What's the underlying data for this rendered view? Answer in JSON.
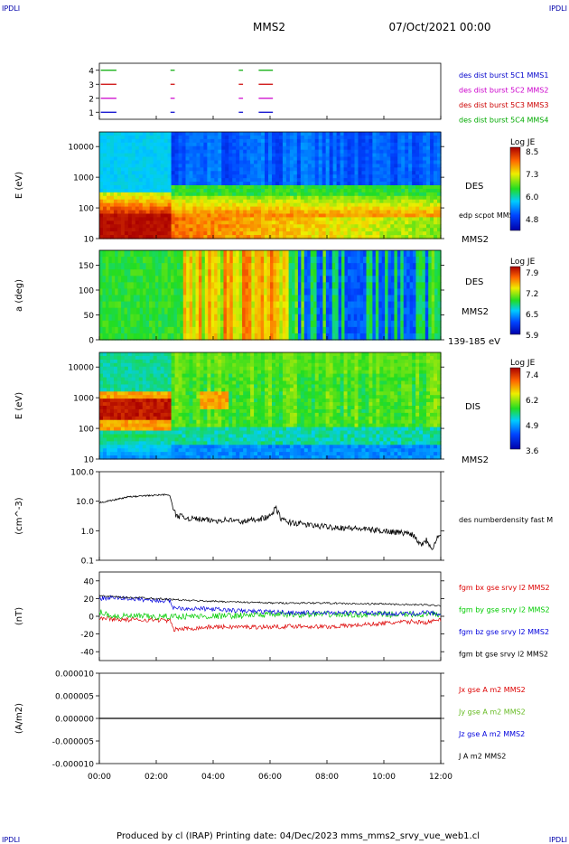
{
  "header": {
    "corner_tl": "IPDLI",
    "corner_tr": "IPDLI",
    "corner_bl": "IPDLI",
    "corner_br": "IPDLI",
    "title": "MMS2",
    "date": "07/Oct/2021 00:00"
  },
  "footer": {
    "text": "Produced by cl (IRAP)   Printing date: 04/Dec/2023   mms_mms2_srvy_vue_web1.cl"
  },
  "x_axis": {
    "ticks": [
      "00:00",
      "02:00",
      "04:00",
      "06:00",
      "08:00",
      "10:00",
      "12:00"
    ],
    "range_hours": [
      0,
      12
    ]
  },
  "colors": {
    "mms1": "#0000cc",
    "mms2": "#cc00cc",
    "mms3": "#cc0000",
    "mms4": "#00aa00",
    "bx": "#dd0000",
    "by": "#00cc00",
    "bz": "#0000dd",
    "bt": "#000000"
  },
  "chart_data": [
    {
      "type": "line",
      "name": "burst",
      "ylim": [
        0.5,
        4.5
      ],
      "yticks": [
        "4",
        "3",
        "2",
        "1"
      ],
      "legend": [
        {
          "text": "des dist burst 5C1 MMS1",
          "color": "#0000cc"
        },
        {
          "text": "des dist burst 5C2 MMS2",
          "color": "#cc00cc"
        },
        {
          "text": "des dist burst 5C3 MMS3",
          "color": "#cc0000"
        },
        {
          "text": "des dist burst 5C4 MMS4",
          "color": "#00aa00"
        }
      ],
      "intervals_hours": [
        [
          0.05,
          0.6
        ],
        [
          2.5,
          2.65
        ],
        [
          4.9,
          5.05
        ],
        [
          5.6,
          6.1
        ]
      ]
    },
    {
      "type": "heatmap",
      "name": "des-energy",
      "ylabel": "E (eV)",
      "yscale": "log",
      "ylim": [
        10,
        30000
      ],
      "yticks": [
        "10000",
        "1000",
        "100",
        "10"
      ],
      "labels": [
        "DES",
        "edp scpot MMS2",
        "MMS2"
      ],
      "colorbar": {
        "title": "Log JE",
        "ticks": [
          "8.5",
          "7.3",
          "6.0",
          "4.8"
        ]
      }
    },
    {
      "type": "heatmap",
      "name": "des-pitch",
      "ylabel": "a (deg)",
      "ylim": [
        0,
        180
      ],
      "yticks": [
        "150",
        "100",
        "50",
        "0"
      ],
      "labels": [
        "DES",
        "MMS2",
        "139-185 eV"
      ],
      "colorbar": {
        "title": "Log JE",
        "ticks": [
          "7.9",
          "7.2",
          "6.5",
          "5.9"
        ]
      }
    },
    {
      "type": "heatmap",
      "name": "dis-energy",
      "ylabel": "E (eV)",
      "yscale": "log",
      "ylim": [
        10,
        30000
      ],
      "yticks": [
        "10000",
        "1000",
        "100",
        "10"
      ],
      "labels": [
        "DIS",
        "MMS2"
      ],
      "colorbar": {
        "title": "Log JE",
        "ticks": [
          "7.4",
          "6.2",
          "4.9",
          "3.6"
        ]
      }
    },
    {
      "type": "line",
      "name": "density",
      "ylabel": "(cm^-3)",
      "yscale": "log",
      "ylim": [
        0.1,
        100
      ],
      "yticks": [
        "100.0",
        "10.0",
        "1.0",
        "0.1"
      ],
      "legend": [
        {
          "text": "des numberdensity fast M",
          "color": "#000000"
        }
      ],
      "series": [
        {
          "x": [
            0,
            0.5,
            1.0,
            1.5,
            2.0,
            2.4,
            2.5,
            2.6,
            2.7,
            3.0,
            3.5,
            4.0,
            4.5,
            5.0,
            5.5,
            6.0,
            6.2,
            6.4,
            6.6,
            7.0,
            7.5,
            8.0,
            8.5,
            9.0,
            9.5,
            10.0,
            10.5,
            11.0,
            11.3,
            11.5,
            11.7,
            11.9,
            12.0
          ],
          "y": [
            9,
            11,
            14,
            15,
            16,
            17,
            14,
            5,
            3.5,
            2.8,
            2.5,
            2.2,
            2.4,
            2.0,
            2.5,
            3.0,
            6,
            2.5,
            2.0,
            1.8,
            1.5,
            1.4,
            1.3,
            1.2,
            1.1,
            1.0,
            0.9,
            0.8,
            0.35,
            0.5,
            0.25,
            0.7,
            0.6
          ]
        }
      ]
    },
    {
      "type": "line",
      "name": "magnetic-field",
      "ylabel": "(nT)",
      "ylim": [
        -50,
        50
      ],
      "yticks": [
        "40",
        "20",
        "0",
        "-20",
        "-40"
      ],
      "legend": [
        {
          "text": "fgm bx gse srvy l2 MMS2",
          "color": "#dd0000"
        },
        {
          "text": "fgm by gse srvy l2 MMS2",
          "color": "#00cc00"
        },
        {
          "text": "fgm bz gse srvy l2 MMS2",
          "color": "#0000dd"
        },
        {
          "text": "fgm bt gse srvy l2 MMS2",
          "color": "#000000"
        }
      ],
      "series": [
        {
          "x": [
            0,
            0.5,
            1.0,
            1.5,
            2.0,
            2.5,
            2.6,
            3.0,
            4.0,
            5.0,
            6.0,
            7.0,
            8.0,
            9.0,
            10.0,
            11.0,
            11.5,
            12.0
          ],
          "y": [
            -2,
            -3,
            -4,
            -4,
            -4,
            -5,
            -15,
            -14,
            -12,
            -12,
            -12,
            -11,
            -12,
            -10,
            -8,
            -6,
            -7,
            -4
          ]
        },
        {
          "x": [
            0,
            0.5,
            1.0,
            1.5,
            2.0,
            2.5,
            2.6,
            3.0,
            4.0,
            5.0,
            6.0,
            7.0,
            8.0,
            9.0,
            10.0,
            11.0,
            11.5,
            12.0
          ],
          "y": [
            5,
            0,
            0,
            0,
            -1,
            0,
            0,
            0,
            0,
            1,
            2,
            2,
            2,
            2,
            2,
            2,
            2,
            2
          ]
        },
        {
          "x": [
            0,
            0.5,
            1.0,
            1.5,
            2.0,
            2.5,
            2.6,
            3.0,
            4.0,
            5.0,
            6.0,
            7.0,
            8.0,
            9.0,
            10.0,
            11.0,
            11.5,
            12.0
          ],
          "y": [
            20,
            21,
            20,
            19,
            18,
            17,
            10,
            9,
            8,
            6,
            5,
            4,
            4,
            4,
            3,
            3,
            4,
            3
          ]
        },
        {
          "x": [
            0,
            0.5,
            1.0,
            1.5,
            2.0,
            2.5,
            2.6,
            3.0,
            4.0,
            5.0,
            6.0,
            7.0,
            8.0,
            9.0,
            10.0,
            11.0,
            11.5,
            12.0
          ],
          "y": [
            23,
            22,
            21,
            21,
            20,
            19,
            19,
            18,
            17,
            16,
            15,
            15,
            15,
            14,
            14,
            13,
            13,
            12
          ]
        }
      ]
    },
    {
      "type": "line",
      "name": "current-density",
      "ylabel": "(A/m2)",
      "ylim": [
        -1e-05,
        1e-05
      ],
      "yticks": [
        "0.000010",
        "0.000005",
        "0.000000",
        "-0.000005",
        "-0.000010"
      ],
      "legend": [
        {
          "text": "Jx gse A m2 MMS2",
          "color": "#dd0000"
        },
        {
          "text": "Jy gse A m2 MMS2",
          "color": "#66bb22"
        },
        {
          "text": "Jz gse A m2 MMS2",
          "color": "#0000dd"
        },
        {
          "text": "J A m2 MMS2",
          "color": "#000000"
        }
      ],
      "series": [
        {
          "x": [
            0,
            12
          ],
          "y": [
            0,
            0
          ]
        }
      ]
    }
  ]
}
